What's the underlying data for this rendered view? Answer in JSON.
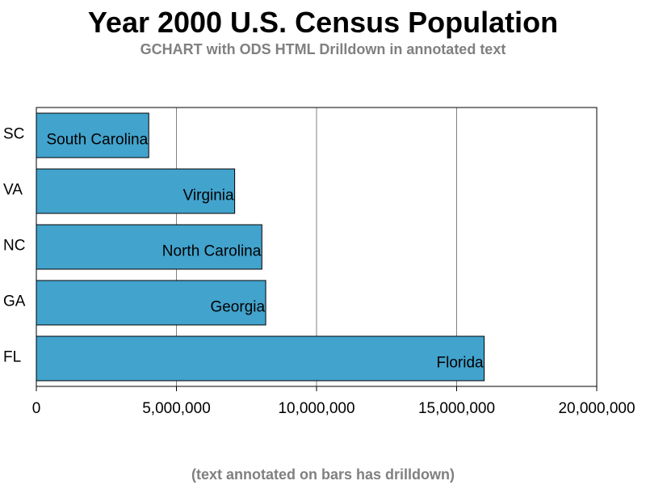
{
  "header": {
    "title": "Year 2000 U.S. Census Population",
    "subtitle": "GCHART with ODS HTML Drilldown in annotated text"
  },
  "footer": {
    "footnote": "(text annotated on bars has drilldown)"
  },
  "chart_data": {
    "type": "bar",
    "orientation": "horizontal",
    "categories": [
      "SC",
      "VA",
      "NC",
      "GA",
      "FL"
    ],
    "values": [
      4012012,
      7078515,
      8049313,
      8186453,
      15982378
    ],
    "bar_annotations": [
      "South Carolina",
      "Virginia",
      "North Carolina",
      "Georgia",
      "Florida"
    ],
    "xlim": [
      0,
      20000000
    ],
    "x_ticks": [
      0,
      5000000,
      10000000,
      15000000,
      20000000
    ],
    "x_tick_labels": [
      "0",
      "5,000,000",
      "10,000,000",
      "15,000,000",
      "20,000,000"
    ],
    "grid": "vertical",
    "bar_color": "#42a3cd",
    "grid_color": "#808080",
    "xlabel": "",
    "ylabel": ""
  }
}
